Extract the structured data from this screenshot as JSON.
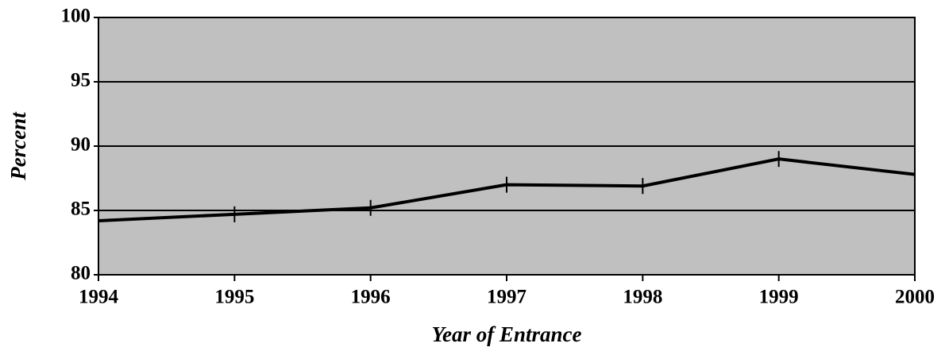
{
  "chart_data": {
    "type": "line",
    "x_label": "Year of Entrance",
    "y_label": "Percent",
    "x": [
      1994,
      1995,
      1996,
      1997,
      1998,
      1999,
      2000
    ],
    "series": [
      {
        "color": "#000000",
        "values": [
          84.2,
          84.7,
          85.2,
          87.0,
          86.9,
          89.0,
          87.8
        ]
      }
    ],
    "xlim": [
      1994,
      2000
    ],
    "xticks": [
      1994,
      1995,
      1996,
      1997,
      1998,
      1999,
      2000
    ],
    "ylim": [
      80,
      100
    ],
    "yticks": [
      80,
      85,
      90,
      95,
      100
    ],
    "grid": true,
    "plot_background": "#c0c0c0"
  }
}
